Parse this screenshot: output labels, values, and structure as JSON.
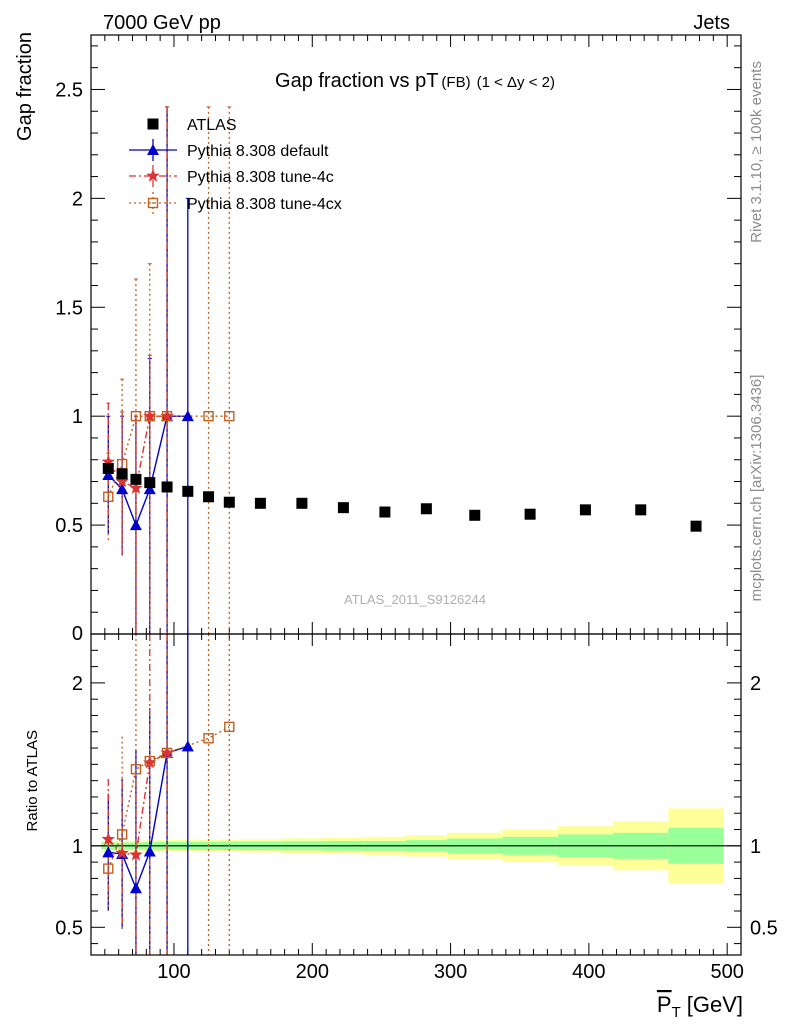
{
  "header": {
    "left": "7000 GeV pp",
    "right": "Jets",
    "side_top": "Rivet 3.1.10, ≥ 100k events",
    "side_bottom": "mcplots.cern.ch [arXiv:1306.3436]"
  },
  "chart_data": {
    "type": "scatter",
    "title": "Gap fraction vs pT",
    "title_suffix": "(FB)",
    "title_range": "(1 < Δy < 2)",
    "watermark": "ATLAS_2011_S9126244",
    "xlabel": "P",
    "xlabel_sub": "T",
    "xlabel_unit": "[GeV]",
    "xlim": [
      40,
      510
    ],
    "xticks": [
      100,
      200,
      300,
      400,
      500
    ],
    "main": {
      "ylabel": "Gap fraction",
      "ylim": [
        0,
        2.75
      ],
      "yticks": [
        0.5,
        1,
        1.5,
        2,
        2.5
      ],
      "ytick_labels": [
        "0.5",
        "1",
        "1.5",
        "2",
        "2.5"
      ],
      "bottom_tick_label": "0"
    },
    "ratio": {
      "ylabel": "Ratio to ATLAS",
      "ylim": [
        0.33,
        2.3
      ],
      "yticks": [
        0.5,
        1,
        2
      ],
      "ytick_labels": [
        "0.5",
        "1",
        "2"
      ]
    },
    "legend": {
      "position": "top-left",
      "entries": [
        "ATLAS",
        "Pythia 8.308 default",
        "Pythia 8.308 tune-4c",
        "Pythia 8.308 tune-4cx"
      ]
    },
    "colors": {
      "data": "#000000",
      "default": "#0000cc",
      "tune4c": "#dd3333",
      "tune4cx": "#c06020",
      "band_inner": "#99ff99",
      "band_outer": "#ffff99"
    },
    "data": {
      "name": "ATLAS",
      "bins": [
        [
          47.5,
          57.5
        ],
        [
          57.5,
          67.5
        ],
        [
          67.5,
          77.5
        ],
        [
          77.5,
          87.5
        ],
        [
          87.5,
          102.5
        ],
        [
          102.5,
          117.5
        ],
        [
          117.5,
          132.5
        ],
        [
          132.5,
          147.5
        ],
        [
          147.5,
          177.5
        ],
        [
          177.5,
          207.5
        ],
        [
          207.5,
          237.5
        ],
        [
          237.5,
          267.5
        ],
        [
          267.5,
          297.5
        ],
        [
          297.5,
          337.5
        ],
        [
          337.5,
          377.5
        ],
        [
          377.5,
          417.5
        ],
        [
          417.5,
          457.5
        ],
        [
          457.5,
          497.5
        ]
      ],
      "x": [
        52.5,
        62.5,
        72.5,
        82.5,
        95,
        110,
        125,
        140,
        162.5,
        192.5,
        222.5,
        252.5,
        282.5,
        317.5,
        357.5,
        397.5,
        437.5,
        477.5
      ],
      "y": [
        0.76,
        0.735,
        0.71,
        0.695,
        0.675,
        0.655,
        0.63,
        0.605,
        0.6,
        0.6,
        0.58,
        0.56,
        0.575,
        0.545,
        0.55,
        0.57,
        0.57,
        0.495
      ],
      "band_inner": [
        0.02,
        0.02,
        0.02,
        0.022,
        0.024,
        0.025,
        0.025,
        0.026,
        0.026,
        0.028,
        0.03,
        0.03,
        0.035,
        0.045,
        0.055,
        0.07,
        0.08,
        0.11
      ],
      "band_outer": [
        0.03,
        0.03,
        0.03,
        0.032,
        0.035,
        0.036,
        0.036,
        0.038,
        0.04,
        0.045,
        0.05,
        0.055,
        0.065,
        0.08,
        0.1,
        0.12,
        0.15,
        0.23
      ]
    },
    "series": [
      {
        "name": "Pythia 8.308 default",
        "x": [
          52.5,
          62.5,
          72.5,
          82.5,
          95,
          110
        ],
        "y": [
          0.73,
          0.665,
          0.5,
          0.665,
          1.0,
          1.0
        ],
        "err_up": [
          0.27,
          0.335,
          0.5,
          0.6,
          1.42,
          1.0
        ],
        "err_down": [
          0.27,
          0.305,
          0.5,
          0.665,
          1.0,
          1.0
        ],
        "ratio": [
          0.96,
          0.95,
          0.74,
          0.965,
          1.57,
          1.61
        ],
        "ratio_err_up": [
          0.36,
          0.46,
          0.85,
          0.88,
          1.2,
          1.2
        ],
        "ratio_err_down": [
          0.36,
          0.46,
          0.74,
          0.965,
          1.57,
          1.61
        ]
      },
      {
        "name": "Pythia 8.308 tune-4c",
        "x": [
          52.5,
          62.5,
          72.5,
          82.5,
          95
        ],
        "y": [
          0.79,
          0.7,
          0.67,
          1.0,
          1.0
        ],
        "err_up": [
          0.27,
          0.32,
          0.33,
          0.28,
          1.42
        ],
        "err_down": [
          0.27,
          0.34,
          0.67,
          0.95,
          1.0
        ],
        "ratio": [
          1.04,
          0.955,
          0.945,
          1.51,
          1.57
        ],
        "ratio_err_up": [
          0.37,
          0.44,
          0.46,
          0.9,
          1.2
        ],
        "ratio_err_down": [
          0.37,
          0.44,
          0.945,
          1.51,
          1.57
        ]
      },
      {
        "name": "Pythia 8.308 tune-4cx",
        "x": [
          52.5,
          62.5,
          72.5,
          82.5,
          95,
          125,
          140
        ],
        "y": [
          0.63,
          0.78,
          1.0,
          1.0,
          1.0,
          1.0,
          1.0
        ],
        "err_up": [
          0.2,
          0.39,
          0.63,
          0.7,
          1.42,
          1.42,
          1.42
        ],
        "err_down": [
          0.2,
          0.42,
          1.0,
          1.0,
          1.0,
          1.0,
          1.0
        ],
        "ratio": [
          0.86,
          1.07,
          1.47,
          1.52,
          1.57,
          1.66,
          1.73
        ],
        "ratio_err_up": [
          0.3,
          0.6,
          0.9,
          0.9,
          1.2,
          1.2,
          1.2
        ],
        "ratio_err_down": [
          0.26,
          0.59,
          1.47,
          1.52,
          1.57,
          1.66,
          1.73
        ]
      }
    ]
  }
}
